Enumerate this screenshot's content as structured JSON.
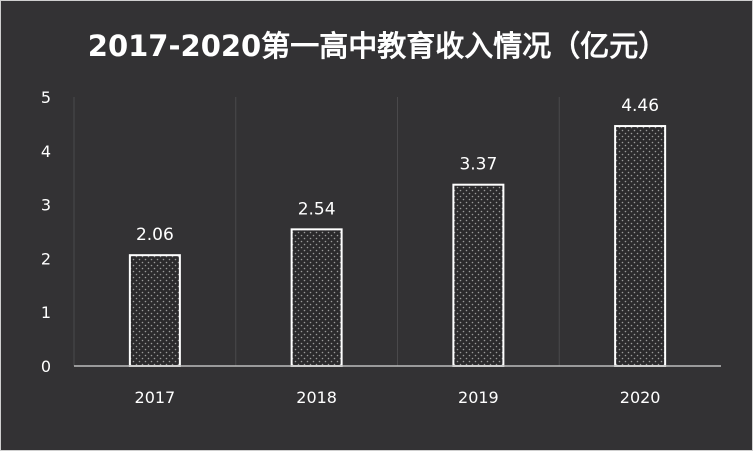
{
  "chart_data": {
    "type": "bar",
    "title": "2017-2020第一高中教育收入情况（亿元）",
    "categories": [
      "2017",
      "2018",
      "2019",
      "2020"
    ],
    "values": [
      2.06,
      2.54,
      3.37,
      4.46
    ],
    "data_labels": [
      "2.06",
      "2.54",
      "3.37",
      "4.46"
    ],
    "y_ticks": [
      "0",
      "1",
      "2",
      "3",
      "4",
      "5"
    ],
    "ylim": [
      0,
      5
    ],
    "xlabel": "",
    "ylabel": "",
    "grid": "vertical category separators",
    "legend": "none",
    "colors": {
      "background": "#333234",
      "bar_fill": "#2b2a2c",
      "bar_border": "#ffffff",
      "bar_pattern_dot": "#9a9a9a",
      "grid": "#4a494b",
      "text": "#ffffff"
    }
  }
}
